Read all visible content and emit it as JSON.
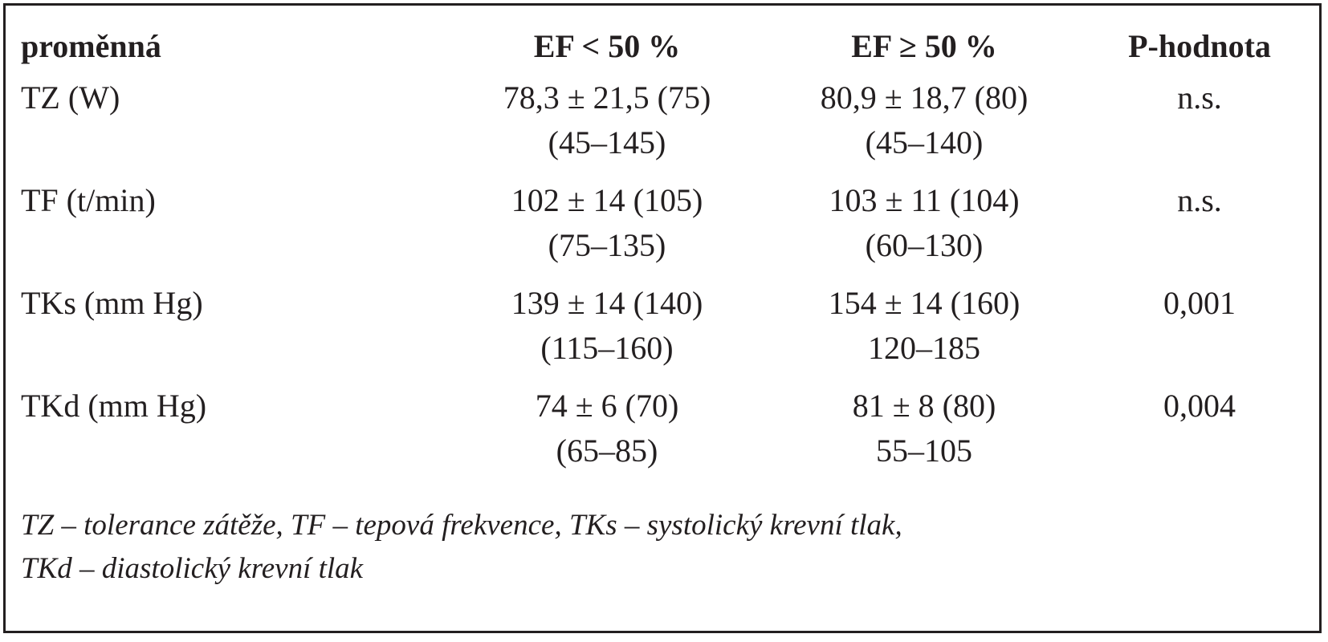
{
  "table": {
    "headers": [
      "proměnná",
      "EF < 50 %",
      "EF ≥ 50 %",
      "P-hodnota"
    ],
    "rows": [
      {
        "variable": "TZ (W)",
        "ef_lt_50": [
          "78,3 ± 21,5 (75)",
          "(45–145)"
        ],
        "ef_ge_50": [
          "80,9 ± 18,7 (80)",
          "(45–140)"
        ],
        "p_value": "n.s."
      },
      {
        "variable": "TF (t/min)",
        "ef_lt_50": [
          "102 ± 14 (105)",
          "(75–135)"
        ],
        "ef_ge_50": [
          "103 ± 11 (104)",
          "(60–130)"
        ],
        "p_value": "n.s."
      },
      {
        "variable": "TKs (mm Hg)",
        "ef_lt_50": [
          "139 ± 14 (140)",
          "(115–160)"
        ],
        "ef_ge_50": [
          "154 ± 14 (160)",
          "120–185"
        ],
        "p_value": "0,001"
      },
      {
        "variable": "TKd (mm Hg)",
        "ef_lt_50": [
          "74 ± 6 (70)",
          "(65–85)"
        ],
        "ef_ge_50": [
          "81 ± 8 (80)",
          "55–105"
        ],
        "p_value": "0,004"
      }
    ]
  },
  "footnote": [
    "TZ – tolerance zátěže, TF – tepová frekvence, TKs – systolický krevní tlak,",
    "TKd – diastolický krevní tlak"
  ]
}
